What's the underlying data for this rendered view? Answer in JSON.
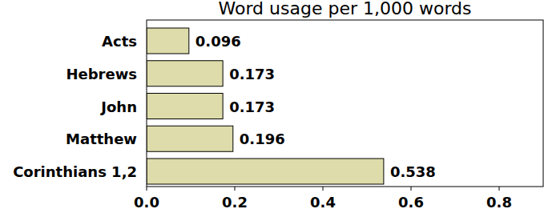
{
  "chart_data": {
    "type": "bar",
    "orientation": "horizontal",
    "title": "Word usage per 1,000 words",
    "categories": [
      "Acts",
      "Hebrews",
      "John",
      "Matthew",
      "Corinthians 1,2"
    ],
    "values": [
      0.096,
      0.173,
      0.173,
      0.196,
      0.538
    ],
    "color": "#dddcaa",
    "xlim": [
      0,
      0.9
    ],
    "xticks": [
      {
        "value": 0,
        "label": "0.0"
      },
      0.2,
      0.4,
      0.6,
      0.8
    ],
    "grid": false,
    "data_labels": true
  }
}
